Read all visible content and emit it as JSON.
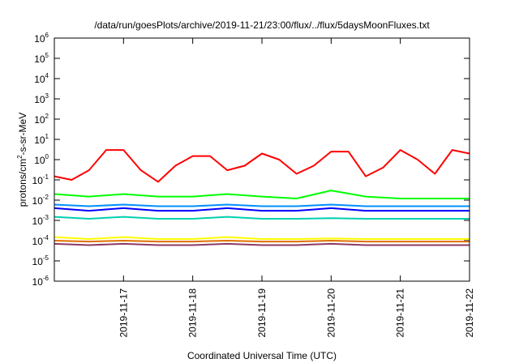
{
  "chart_data": {
    "type": "line",
    "title": "/data/run/goesPlots/archive/2019-11-21/23:00/flux/../flux/5daysMoonFluxes.txt",
    "xlabel": "Coordinated Universal Time (UTC)",
    "ylabel": "protons/cm²-s-sr-MeV",
    "ylabel_parts": [
      "protons/cm",
      "2",
      "-s-sr-MeV"
    ],
    "yscale": "log",
    "ylim": [
      1e-06,
      1000000.0
    ],
    "xlim": [
      "2019-11-16T00:00",
      "2019-11-22T00:00"
    ],
    "xticks": [
      "2019-11-17",
      "2019-11-18",
      "2019-11-19",
      "2019-11-20",
      "2019-11-21",
      "2019-11-22"
    ],
    "yticks": [
      {
        "base": "10",
        "exp": "-6"
      },
      {
        "base": "10",
        "exp": "-5"
      },
      {
        "base": "10",
        "exp": "-4"
      },
      {
        "base": "10",
        "exp": "-3"
      },
      {
        "base": "10",
        "exp": "-2"
      },
      {
        "base": "10",
        "exp": "-1"
      },
      {
        "base": "10",
        "exp": "0"
      },
      {
        "base": "10",
        "exp": "1"
      },
      {
        "base": "10",
        "exp": "2"
      },
      {
        "base": "10",
        "exp": "3"
      },
      {
        "base": "10",
        "exp": "4"
      },
      {
        "base": "10",
        "exp": "5"
      },
      {
        "base": "10",
        "exp": "6"
      }
    ],
    "grid": false,
    "series": [
      {
        "color": "#ff0000",
        "x": [
          "2019-11-16T00:00",
          "2019-11-16T06:00",
          "2019-11-16T12:00",
          "2019-11-16T18:00",
          "2019-11-17T00:00",
          "2019-11-17T06:00",
          "2019-11-17T12:00",
          "2019-11-17T18:00",
          "2019-11-18T00:00",
          "2019-11-18T06:00",
          "2019-11-18T12:00",
          "2019-11-18T18:00",
          "2019-11-19T00:00",
          "2019-11-19T06:00",
          "2019-11-19T12:00",
          "2019-11-19T18:00",
          "2019-11-20T00:00",
          "2019-11-20T06:00",
          "2019-11-20T12:00",
          "2019-11-20T18:00",
          "2019-11-21T00:00",
          "2019-11-21T06:00",
          "2019-11-21T12:00",
          "2019-11-21T18:00",
          "2019-11-22T00:00"
        ],
        "y": [
          0.15,
          0.1,
          0.3,
          3,
          3,
          0.3,
          0.08,
          0.5,
          1.5,
          1.5,
          0.3,
          0.5,
          2,
          1,
          0.2,
          0.5,
          2.5,
          2.5,
          0.15,
          0.4,
          3,
          1,
          0.2,
          3,
          2
        ]
      },
      {
        "color": "#00ff00",
        "x": [
          "2019-11-16T00:00",
          "2019-11-16T12:00",
          "2019-11-17T00:00",
          "2019-11-17T12:00",
          "2019-11-18T00:00",
          "2019-11-18T12:00",
          "2019-11-19T00:00",
          "2019-11-19T12:00",
          "2019-11-20T00:00",
          "2019-11-20T12:00",
          "2019-11-21T00:00",
          "2019-11-21T12:00",
          "2019-11-22T00:00"
        ],
        "y": [
          0.02,
          0.015,
          0.02,
          0.015,
          0.015,
          0.02,
          0.015,
          0.012,
          0.03,
          0.015,
          0.012,
          0.012,
          0.012
        ]
      },
      {
        "color": "#0090ff",
        "x": [
          "2019-11-16T00:00",
          "2019-11-16T12:00",
          "2019-11-17T00:00",
          "2019-11-17T12:00",
          "2019-11-18T00:00",
          "2019-11-18T12:00",
          "2019-11-19T00:00",
          "2019-11-19T12:00",
          "2019-11-20T00:00",
          "2019-11-20T12:00",
          "2019-11-21T00:00",
          "2019-11-21T12:00",
          "2019-11-22T00:00"
        ],
        "y": [
          0.006,
          0.005,
          0.006,
          0.005,
          0.005,
          0.006,
          0.005,
          0.005,
          0.006,
          0.005,
          0.005,
          0.005,
          0.005
        ]
      },
      {
        "color": "#0000ff",
        "x": [
          "2019-11-16T00:00",
          "2019-11-16T12:00",
          "2019-11-17T00:00",
          "2019-11-17T12:00",
          "2019-11-18T00:00",
          "2019-11-18T12:00",
          "2019-11-19T00:00",
          "2019-11-19T12:00",
          "2019-11-20T00:00",
          "2019-11-20T12:00",
          "2019-11-21T00:00",
          "2019-11-21T12:00",
          "2019-11-22T00:00"
        ],
        "y": [
          0.004,
          0.003,
          0.004,
          0.003,
          0.003,
          0.004,
          0.003,
          0.003,
          0.004,
          0.003,
          0.003,
          0.003,
          0.003
        ]
      },
      {
        "color": "#00d0b0",
        "x": [
          "2019-11-16T00:00",
          "2019-11-16T12:00",
          "2019-11-17T00:00",
          "2019-11-17T12:00",
          "2019-11-18T00:00",
          "2019-11-18T12:00",
          "2019-11-19T00:00",
          "2019-11-19T12:00",
          "2019-11-20T00:00",
          "2019-11-20T12:00",
          "2019-11-21T00:00",
          "2019-11-21T12:00",
          "2019-11-22T00:00"
        ],
        "y": [
          0.0015,
          0.0012,
          0.0015,
          0.0012,
          0.0012,
          0.0015,
          0.0012,
          0.0012,
          0.0013,
          0.0012,
          0.0012,
          0.0012,
          0.0012
        ]
      },
      {
        "color": "#ffff00",
        "x": [
          "2019-11-16T00:00",
          "2019-11-16T12:00",
          "2019-11-17T00:00",
          "2019-11-17T12:00",
          "2019-11-18T00:00",
          "2019-11-18T12:00",
          "2019-11-19T00:00",
          "2019-11-19T12:00",
          "2019-11-20T00:00",
          "2019-11-20T12:00",
          "2019-11-21T00:00",
          "2019-11-21T12:00",
          "2019-11-22T00:00"
        ],
        "y": [
          0.00015,
          0.00012,
          0.00015,
          0.00012,
          0.00012,
          0.00015,
          0.00012,
          0.00012,
          0.00013,
          0.00012,
          0.00012,
          0.00012,
          0.00012
        ]
      },
      {
        "color": "#e07000",
        "x": [
          "2019-11-16T00:00",
          "2019-11-16T12:00",
          "2019-11-17T00:00",
          "2019-11-17T12:00",
          "2019-11-18T00:00",
          "2019-11-18T12:00",
          "2019-11-19T00:00",
          "2019-11-19T12:00",
          "2019-11-20T00:00",
          "2019-11-20T12:00",
          "2019-11-21T00:00",
          "2019-11-21T12:00",
          "2019-11-22T00:00"
        ],
        "y": [
          0.0001,
          9e-05,
          0.0001,
          9e-05,
          9e-05,
          0.0001,
          9e-05,
          9e-05,
          0.0001,
          9e-05,
          9e-05,
          9e-05,
          9e-05
        ]
      },
      {
        "color": "#8b3a62",
        "x": [
          "2019-11-16T00:00",
          "2019-11-16T12:00",
          "2019-11-17T00:00",
          "2019-11-17T12:00",
          "2019-11-18T00:00",
          "2019-11-18T12:00",
          "2019-11-19T00:00",
          "2019-11-19T12:00",
          "2019-11-20T00:00",
          "2019-11-20T12:00",
          "2019-11-21T00:00",
          "2019-11-21T12:00",
          "2019-11-22T00:00"
        ],
        "y": [
          7e-05,
          6e-05,
          7e-05,
          6e-05,
          6e-05,
          7e-05,
          6e-05,
          6e-05,
          7e-05,
          6e-05,
          6e-05,
          6e-05,
          6e-05
        ]
      }
    ]
  }
}
